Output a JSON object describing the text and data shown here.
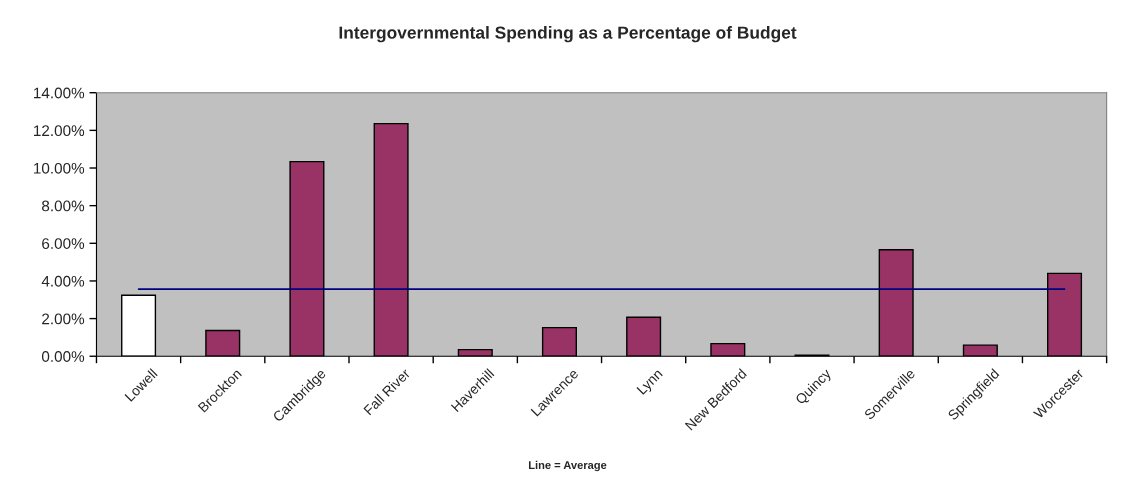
{
  "chart_data": {
    "type": "bar",
    "title": "Intergovernmental Spending as a Percentage of Budget",
    "categories": [
      "Lowell",
      "Brockton",
      "Cambridge",
      "Fall River",
      "Haverhill",
      "Lawrence",
      "Lynn",
      "New Bedford",
      "Quincy",
      "Somerville",
      "Springfield",
      "Worcester"
    ],
    "series": [
      {
        "colors": [
          "#ffffff",
          "#993366",
          "#993366",
          "#993366",
          "#993366",
          "#993366",
          "#993366",
          "#993366",
          "#993366",
          "#993366",
          "#993366",
          "#993366"
        ],
        "values": [
          3.24,
          1.37,
          10.34,
          12.36,
          0.35,
          1.52,
          2.07,
          0.67,
          0.05,
          5.66,
          0.59,
          4.4
        ]
      },
      {
        "type": "line",
        "color": "#000080",
        "values": [
          3.57,
          3.57,
          3.57,
          3.57,
          3.57,
          3.57,
          3.57,
          3.57,
          3.57,
          3.57,
          3.57,
          3.57
        ]
      }
    ],
    "ylim": [
      0,
      14
    ],
    "yticks": [
      {
        "value": 0,
        "label": "0.00%"
      },
      {
        "value": 2,
        "label": "2.00%"
      },
      {
        "value": 4,
        "label": "4.00%"
      },
      {
        "value": 6,
        "label": "6.00%"
      },
      {
        "value": 8,
        "label": "8.00%"
      },
      {
        "value": 10,
        "label": "10.00%"
      },
      {
        "value": 12,
        "label": "12.00%"
      },
      {
        "value": 14,
        "label": "14.00%"
      }
    ],
    "annotations": [
      "Line = Average"
    ],
    "grid": false,
    "marker": "none",
    "line_style": "solid"
  }
}
